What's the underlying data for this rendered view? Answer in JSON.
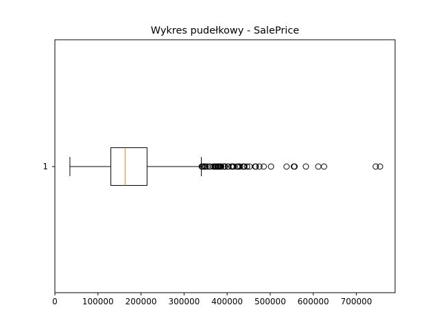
{
  "chart_data": {
    "type": "box",
    "orientation": "horizontal",
    "title": "Wykres pudełkowy - SalePrice",
    "xlabel": "",
    "ylabel": "",
    "xlim": [
      0,
      790000
    ],
    "x_ticks": [
      0,
      100000,
      200000,
      300000,
      400000,
      500000,
      600000,
      700000
    ],
    "y_ticks": [
      "1"
    ],
    "grid": false,
    "colors": {
      "median": "#ff7f0e",
      "box": "#000000",
      "outlier": "#000000",
      "background": "#ffffff"
    },
    "boxes": [
      {
        "label": "1",
        "whisker_low": 34900,
        "q1": 129975,
        "median": 163000,
        "q3": 214000,
        "whisker_high": 340000,
        "outliers": [
          341000,
          342643,
          345000,
          348000,
          350000,
          354000,
          359100,
          360000,
          367294,
          370878,
          372402,
          374000,
          375000,
          377426,
          378500,
          380000,
          381000,
          383970,
          385000,
          386250,
          392000,
          394432,
          394617,
          395000,
          402000,
          402861,
          410000,
          412500,
          415298,
          423000,
          424870,
          426000,
          430000,
          437154,
          438780,
          440000,
          446261,
          451950,
          465000,
          466500,
          475000,
          485000,
          501837,
          538000,
          555000,
          556581,
          582933,
          611657,
          625000,
          745000,
          755000
        ]
      }
    ]
  }
}
